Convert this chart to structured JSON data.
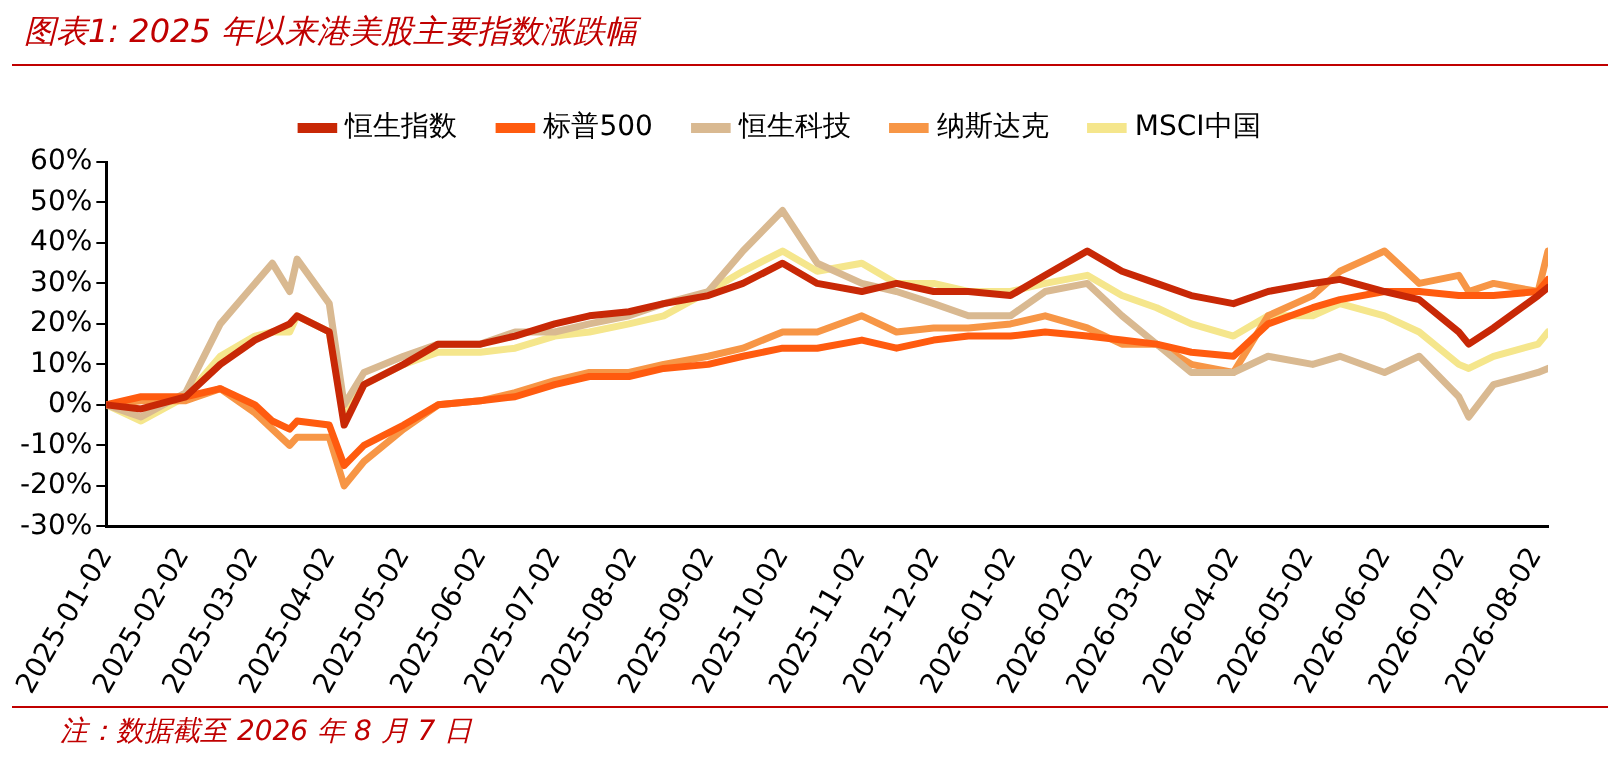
{
  "chart_data": {
    "type": "line",
    "title": "图表1:  2025 年以来港美股主要指数涨跌幅",
    "annotations": [
      "注：数据截至 2026 年 8 月 7 日"
    ],
    "x": [
      "2025-01-02",
      "2025-01-16",
      "2025-02-03",
      "2025-02-17",
      "2025-03-03",
      "2025-03-10",
      "2025-03-17",
      "2025-03-20",
      "2025-04-02",
      "2025-04-08",
      "2025-04-16",
      "2025-05-02",
      "2025-05-16",
      "2025-06-02",
      "2025-06-16",
      "2025-07-02",
      "2025-07-16",
      "2025-08-01",
      "2025-08-15",
      "2025-09-02",
      "2025-09-16",
      "2025-10-02",
      "2025-10-16",
      "2025-11-03",
      "2025-11-17",
      "2025-12-02",
      "2025-12-16",
      "2026-01-02",
      "2026-01-16",
      "2026-02-02",
      "2026-02-16",
      "2026-03-02",
      "2026-03-16",
      "2026-04-02",
      "2026-04-16",
      "2026-05-04",
      "2026-05-15",
      "2026-06-02",
      "2026-06-16",
      "2026-07-02",
      "2026-07-06",
      "2026-07-16",
      "2026-08-03",
      "2026-08-07"
    ],
    "series": [
      {
        "name": "恒生指数",
        "color": "#c82806",
        "values": [
          0,
          -1,
          2,
          10,
          16,
          18,
          20,
          22,
          18,
          -5,
          5,
          10,
          15,
          15,
          17,
          20,
          22,
          23,
          25,
          27,
          30,
          35,
          30,
          28,
          30,
          28,
          28,
          27,
          32,
          38,
          33,
          30,
          27,
          25,
          28,
          30,
          31,
          28,
          26,
          18,
          15,
          19,
          27,
          29
        ]
      },
      {
        "name": "标普500",
        "color": "#ff5b0f",
        "values": [
          0,
          2,
          2,
          4,
          0,
          -4,
          -6,
          -4,
          -5,
          -15,
          -10,
          -5,
          0,
          1,
          2,
          5,
          7,
          7,
          9,
          10,
          12,
          14,
          14,
          16,
          14,
          16,
          17,
          17,
          18,
          17,
          16,
          15,
          13,
          12,
          20,
          24,
          26,
          28,
          28,
          27,
          27,
          27,
          28,
          31
        ]
      },
      {
        "name": "恒生科技",
        "color": "#d9b991",
        "values": [
          0,
          -3,
          3,
          20,
          30,
          35,
          28,
          36,
          25,
          0,
          8,
          12,
          15,
          15,
          18,
          18,
          20,
          22,
          25,
          28,
          38,
          48,
          35,
          30,
          28,
          25,
          22,
          22,
          28,
          30,
          22,
          15,
          8,
          8,
          12,
          10,
          12,
          8,
          12,
          2,
          -3,
          5,
          8,
          9
        ]
      },
      {
        "name": "纳斯达克",
        "color": "#f79646",
        "values": [
          0,
          1,
          1,
          4,
          -2,
          -6,
          -10,
          -8,
          -8,
          -20,
          -14,
          -6,
          0,
          1,
          3,
          6,
          8,
          8,
          10,
          12,
          14,
          18,
          18,
          22,
          18,
          19,
          19,
          20,
          22,
          19,
          15,
          15,
          10,
          8,
          22,
          27,
          33,
          38,
          30,
          32,
          28,
          30,
          28,
          38
        ]
      },
      {
        "name": "MSCI中国",
        "color": "#f5e68c",
        "values": [
          0,
          -4,
          2,
          12,
          17,
          18,
          18,
          22,
          18,
          -3,
          5,
          10,
          13,
          13,
          14,
          17,
          18,
          20,
          22,
          28,
          33,
          38,
          33,
          35,
          30,
          30,
          28,
          28,
          30,
          32,
          27,
          24,
          20,
          17,
          22,
          22,
          25,
          22,
          18,
          10,
          9,
          12,
          15,
          18
        ]
      }
    ],
    "xlim": [
      "2025-01-02",
      "2026-08-07"
    ],
    "xticks": [
      "2025-01-02",
      "2025-02-02",
      "2025-03-02",
      "2025-04-02",
      "2025-05-02",
      "2025-06-02",
      "2025-07-02",
      "2025-08-02",
      "2025-09-02",
      "2025-10-02",
      "2025-11-02",
      "2025-12-02",
      "2026-01-02",
      "2026-02-02",
      "2026-03-02",
      "2026-04-02",
      "2026-05-02",
      "2026-06-02",
      "2026-07-02",
      "2026-08-02"
    ],
    "ylim": [
      -30,
      60
    ],
    "yticks": [
      {
        "value": -30,
        "label": "-30%"
      },
      {
        "value": -20,
        "label": "-20%"
      },
      {
        "value": -10,
        "label": "-10%"
      },
      {
        "value": 0,
        "label": "0%"
      },
      {
        "value": 10,
        "label": "10%"
      },
      {
        "value": 20,
        "label": "20%"
      },
      {
        "value": 30,
        "label": "30%"
      },
      {
        "value": 40,
        "label": "40%"
      },
      {
        "value": 50,
        "label": "50%"
      },
      {
        "value": 60,
        "label": "60%"
      }
    ],
    "grid": false,
    "legend": "top",
    "marker": "none",
    "line_style": "solid"
  }
}
